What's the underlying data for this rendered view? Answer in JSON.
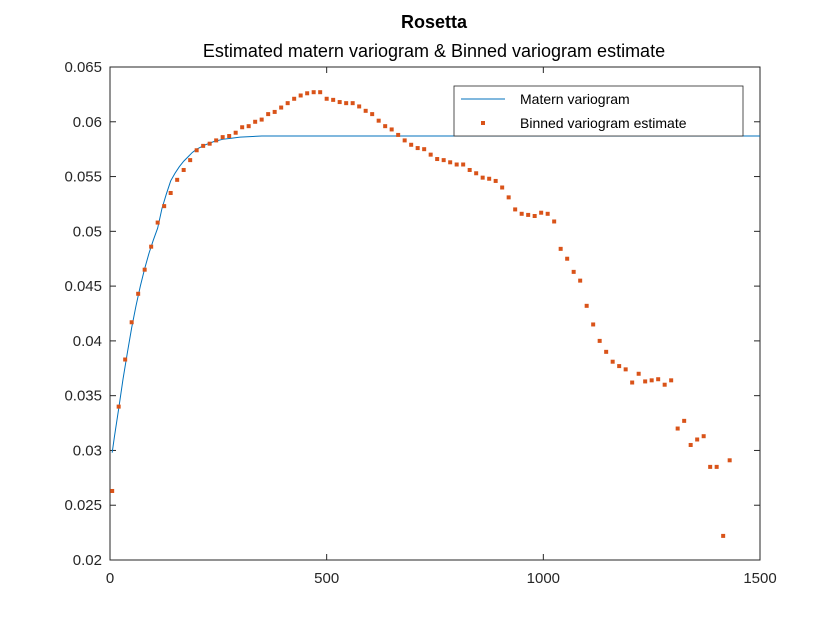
{
  "chart_data": {
    "type": "scatter",
    "title": "Rosetta",
    "subtitle": "Estimated matern variogram & Binned variogram estimate",
    "xlabel": "",
    "ylabel": "",
    "xlim": [
      0,
      1500
    ],
    "ylim": [
      0.02,
      0.065
    ],
    "xticks": [
      0,
      500,
      1000,
      1500
    ],
    "xtick_labels": [
      "0",
      "500",
      "1000",
      "1500"
    ],
    "yticks": [
      0.02,
      0.025,
      0.03,
      0.035,
      0.04,
      0.045,
      0.05,
      0.055,
      0.06,
      0.065
    ],
    "ytick_labels": [
      "0.02",
      "0.025",
      "0.03",
      "0.035",
      "0.04",
      "0.045",
      "0.05",
      "0.055",
      "0.06",
      "0.065"
    ],
    "grid": false,
    "legend_position": "top-right",
    "series": [
      {
        "name": "Matern variogram",
        "kind": "line",
        "color": "#0072BD",
        "x": [
          5,
          10,
          20,
          30,
          40,
          50,
          60,
          70,
          80,
          90,
          100,
          110,
          120,
          130,
          140,
          150,
          160,
          170,
          180,
          190,
          200,
          220,
          240,
          260,
          280,
          300,
          350,
          400,
          500,
          600,
          700,
          800,
          900,
          1000,
          1100,
          1200,
          1300,
          1400,
          1500
        ],
        "y": [
          0.0298,
          0.0312,
          0.0338,
          0.0365,
          0.0389,
          0.0412,
          0.0432,
          0.045,
          0.0466,
          0.048,
          0.0492,
          0.0503,
          0.0521,
          0.0534,
          0.0546,
          0.0553,
          0.0559,
          0.0564,
          0.0568,
          0.0572,
          0.0575,
          0.0579,
          0.0582,
          0.0584,
          0.0585,
          0.0586,
          0.0587,
          0.0587,
          0.0587,
          0.0587,
          0.0587,
          0.0587,
          0.0587,
          0.0587,
          0.0587,
          0.0587,
          0.0587,
          0.0587,
          0.0587
        ]
      },
      {
        "name": "Binned variogram estimate",
        "kind": "scatter",
        "color": "#D95319",
        "x": [
          5,
          20,
          35,
          50,
          65,
          80,
          95,
          110,
          125,
          140,
          155,
          170,
          185,
          200,
          215,
          230,
          245,
          260,
          275,
          290,
          305,
          320,
          335,
          350,
          365,
          380,
          395,
          410,
          425,
          440,
          455,
          470,
          485,
          500,
          515,
          530,
          545,
          560,
          575,
          590,
          605,
          620,
          635,
          650,
          665,
          680,
          695,
          710,
          725,
          740,
          755,
          770,
          785,
          800,
          815,
          830,
          845,
          860,
          875,
          890,
          905,
          920,
          935,
          950,
          965,
          980,
          995,
          1010,
          1025,
          1040,
          1055,
          1070,
          1085,
          1100,
          1115,
          1130,
          1145,
          1160,
          1175,
          1190,
          1205,
          1220,
          1235,
          1250,
          1265,
          1280,
          1295,
          1310,
          1325,
          1340,
          1355,
          1370,
          1385,
          1400,
          1415,
          1430
        ],
        "y": [
          0.0263,
          0.034,
          0.0383,
          0.0417,
          0.0443,
          0.0465,
          0.0486,
          0.0508,
          0.0523,
          0.0535,
          0.0547,
          0.0556,
          0.0565,
          0.0574,
          0.0578,
          0.058,
          0.0583,
          0.0586,
          0.0587,
          0.059,
          0.0595,
          0.0596,
          0.06,
          0.0602,
          0.0607,
          0.0609,
          0.0613,
          0.0617,
          0.0621,
          0.0624,
          0.0626,
          0.0627,
          0.0627,
          0.0621,
          0.062,
          0.0618,
          0.0617,
          0.0617,
          0.0614,
          0.061,
          0.0607,
          0.0601,
          0.0596,
          0.0593,
          0.0588,
          0.0583,
          0.0579,
          0.0576,
          0.0575,
          0.057,
          0.0566,
          0.0565,
          0.0563,
          0.0561,
          0.0561,
          0.0556,
          0.0553,
          0.0549,
          0.0548,
          0.0546,
          0.054,
          0.0531,
          0.052,
          0.0516,
          0.0515,
          0.0514,
          0.0517,
          0.0516,
          0.0509,
          0.0484,
          0.0475,
          0.0463,
          0.0455,
          0.0432,
          0.0415,
          0.04,
          0.039,
          0.0381,
          0.0377,
          0.0374,
          0.0362,
          0.037,
          0.0363,
          0.0364,
          0.0365,
          0.036,
          0.0364,
          0.032,
          0.0327,
          0.0305,
          0.031,
          0.0313,
          0.0285,
          0.0285,
          0.0222,
          0.0291
        ]
      }
    ]
  }
}
